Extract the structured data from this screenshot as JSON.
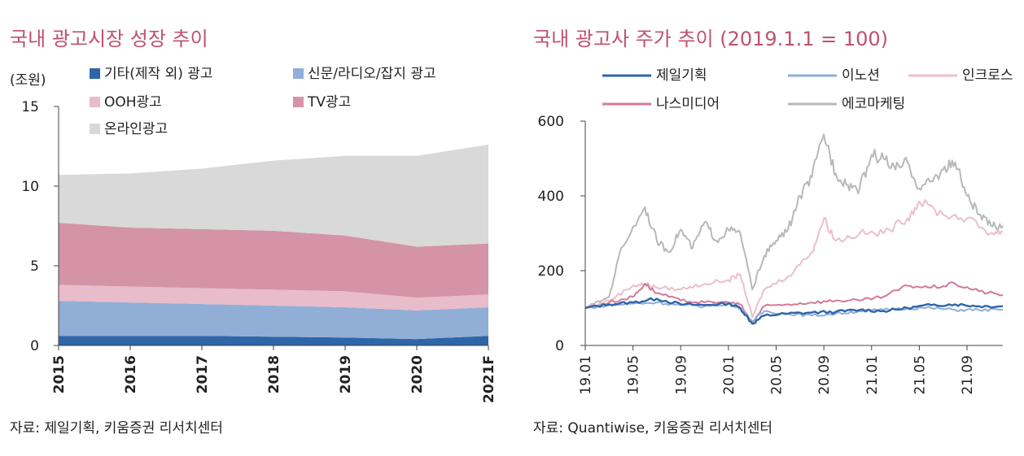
{
  "left": {
    "title": "국내 광고시장 성장 추이",
    "unit": "(조원)",
    "source": "자료: 제일기획, 키움증권 리서치센터"
  },
  "right": {
    "title": "국내 광고사 주가 추이 (2019.1.1 = 100)",
    "source": "자료: Quantiwise, 키움증권 리서치센터"
  },
  "chart_data": [
    {
      "type": "area",
      "stacked": true,
      "ylabel": "(조원)",
      "ylim": [
        0,
        15
      ],
      "yticks": [
        0,
        5,
        10,
        15
      ],
      "categories": [
        "2015",
        "2016",
        "2017",
        "2018",
        "2019",
        "2020",
        "2021F"
      ],
      "legend_placement": "top",
      "series": [
        {
          "name": "기타(제작 외) 광고",
          "color": "#2e66a8",
          "values": [
            0.6,
            0.6,
            0.6,
            0.55,
            0.5,
            0.4,
            0.6
          ]
        },
        {
          "name": "신문/라디오/잡지 광고",
          "color": "#91aed7",
          "values": [
            2.2,
            2.1,
            2.0,
            1.95,
            1.9,
            1.8,
            1.8
          ]
        },
        {
          "name": "OOH광고",
          "color": "#e8bccb",
          "values": [
            1.0,
            1.0,
            1.0,
            1.0,
            1.0,
            0.8,
            0.8
          ]
        },
        {
          "name": "TV광고",
          "color": "#d493a7",
          "values": [
            3.9,
            3.7,
            3.7,
            3.7,
            3.5,
            3.2,
            3.2
          ]
        },
        {
          "name": "온라인광고",
          "color": "#d9d9d9",
          "values": [
            3.0,
            3.4,
            3.8,
            4.4,
            5.0,
            5.7,
            6.2
          ]
        }
      ]
    },
    {
      "type": "line",
      "ylim": [
        0,
        600
      ],
      "yticks": [
        0,
        200,
        400,
        600
      ],
      "x_ticks": [
        "19.01",
        "19.05",
        "19.09",
        "20.01",
        "20.05",
        "20.09",
        "21.01",
        "21.05",
        "21.09"
      ],
      "x_range": [
        "2019.01",
        "2021.12"
      ],
      "legend_placement": "top",
      "series": [
        {
          "name": "제일기획",
          "color": "#2e66a8",
          "x": [
            "19.01",
            "19.03",
            "19.05",
            "19.07",
            "19.09",
            "19.11",
            "20.01",
            "20.02",
            "20.03",
            "20.04",
            "20.06",
            "20.08",
            "20.10",
            "20.12",
            "21.02",
            "21.04",
            "21.06",
            "21.08",
            "21.10",
            "21.12"
          ],
          "y": [
            100,
            110,
            115,
            125,
            110,
            108,
            112,
            100,
            58,
            80,
            85,
            88,
            90,
            95,
            92,
            100,
            108,
            110,
            105,
            105
          ]
        },
        {
          "name": "이노션",
          "color": "#8fadd6",
          "x": [
            "19.01",
            "19.03",
            "19.05",
            "19.07",
            "19.09",
            "19.11",
            "20.01",
            "20.02",
            "20.03",
            "20.04",
            "20.06",
            "20.08",
            "20.10",
            "20.12",
            "21.02",
            "21.04",
            "21.06",
            "21.08",
            "21.10",
            "21.12"
          ],
          "y": [
            100,
            108,
            112,
            115,
            108,
            105,
            112,
            100,
            65,
            92,
            85,
            80,
            85,
            92,
            95,
            100,
            100,
            95,
            95,
            95
          ]
        },
        {
          "name": "인크로스",
          "color": "#eabfcd",
          "x": [
            "19.01",
            "19.03",
            "19.05",
            "19.06",
            "19.07",
            "19.09",
            "19.11",
            "20.01",
            "20.02",
            "20.03",
            "20.04",
            "20.06",
            "20.08",
            "20.09",
            "20.10",
            "20.12",
            "21.02",
            "21.04",
            "21.05",
            "21.07",
            "21.09",
            "21.11",
            "21.12"
          ],
          "y": [
            100,
            120,
            160,
            165,
            155,
            150,
            165,
            175,
            190,
            75,
            150,
            185,
            250,
            340,
            280,
            300,
            300,
            340,
            385,
            350,
            340,
            300,
            305
          ]
        },
        {
          "name": "나스미디어",
          "color": "#d27a98",
          "x": [
            "19.01",
            "19.03",
            "19.05",
            "19.06",
            "19.07",
            "19.09",
            "19.11",
            "20.01",
            "20.02",
            "20.03",
            "20.04",
            "20.06",
            "20.08",
            "20.10",
            "20.12",
            "21.02",
            "21.04",
            "21.06",
            "21.08",
            "21.10",
            "21.12"
          ],
          "y": [
            100,
            115,
            130,
            165,
            140,
            120,
            115,
            115,
            110,
            60,
            105,
            110,
            115,
            120,
            120,
            130,
            160,
            155,
            165,
            145,
            135
          ]
        },
        {
          "name": "에코마케팅",
          "color": "#b8b8b8",
          "x": [
            "19.01",
            "19.03",
            "19.04",
            "19.06",
            "19.07",
            "19.08",
            "19.09",
            "19.10",
            "19.11",
            "19.12",
            "20.01",
            "20.02",
            "20.03",
            "20.04",
            "20.05",
            "20.06",
            "20.07",
            "20.08",
            "20.09",
            "20.10",
            "20.11",
            "20.12",
            "21.01",
            "21.02",
            "21.03",
            "21.04",
            "21.05",
            "21.06",
            "21.07",
            "21.08",
            "21.09",
            "21.10",
            "21.11",
            "21.12"
          ],
          "y": [
            100,
            130,
            260,
            370,
            280,
            250,
            310,
            260,
            330,
            280,
            310,
            300,
            150,
            240,
            280,
            310,
            400,
            450,
            565,
            460,
            430,
            420,
            510,
            500,
            470,
            490,
            420,
            440,
            470,
            490,
            400,
            350,
            320,
            320
          ]
        }
      ]
    }
  ]
}
